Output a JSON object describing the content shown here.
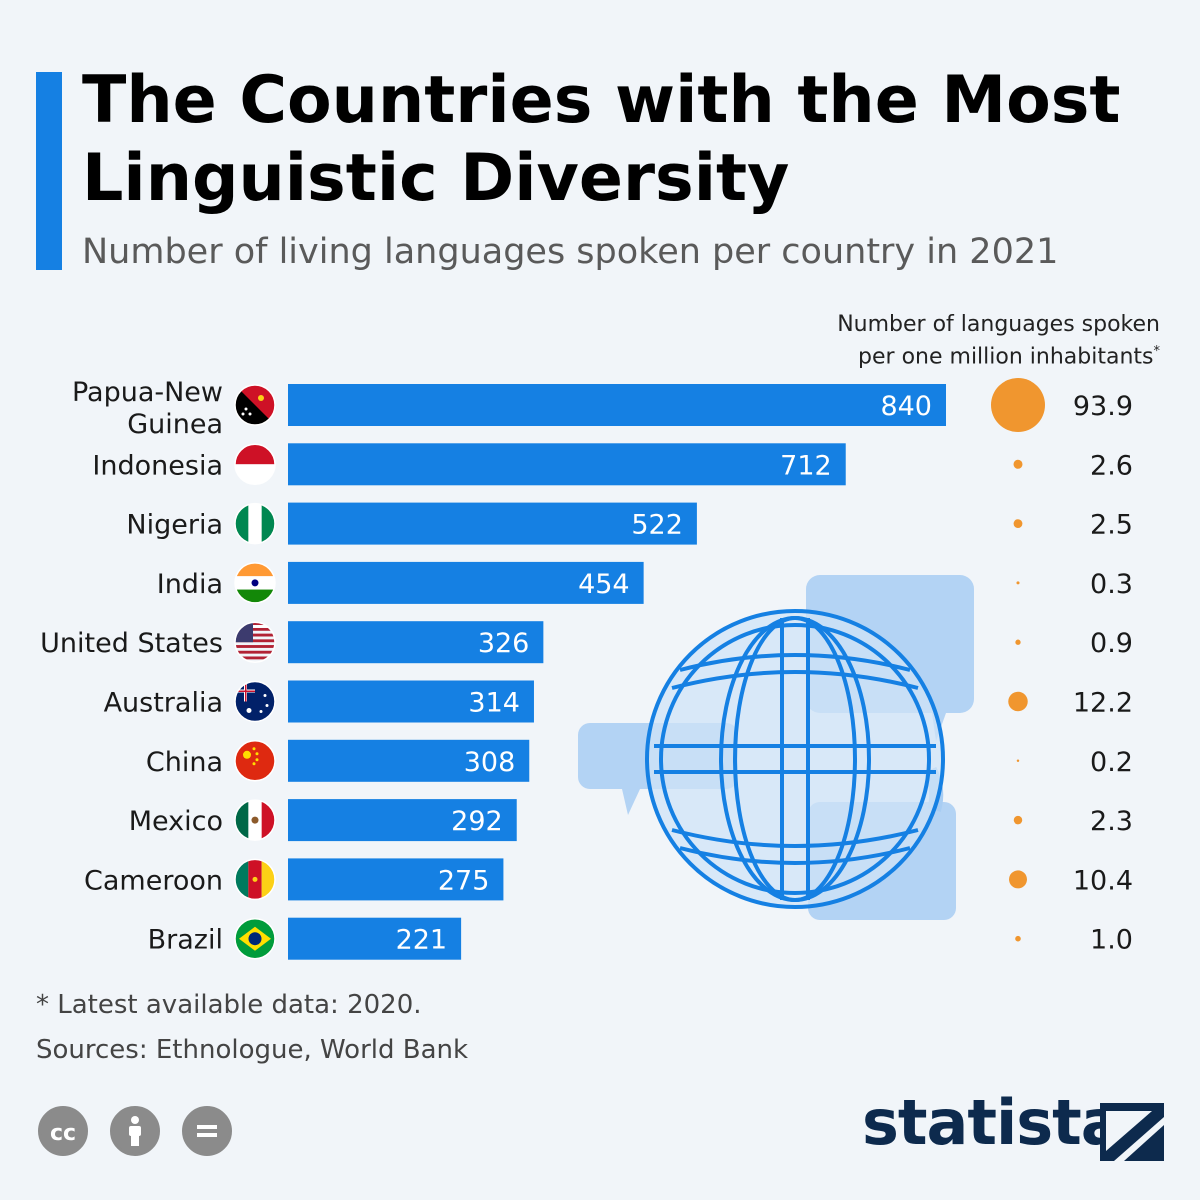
{
  "header": {
    "title": "The Countries with the Most Linguistic Diversity",
    "subtitle": "Number of living languages spoken per country in 2021"
  },
  "legend": {
    "line1": "Number of languages spoken",
    "line2": "per one million inhabitants",
    "marker": "*"
  },
  "chart_data": {
    "type": "bar",
    "title": "The Countries with the Most Linguistic Diversity",
    "subtitle": "Number of living languages spoken per country in 2021",
    "categories": [
      "Papua-New Guinea",
      "Indonesia",
      "Nigeria",
      "India",
      "United States",
      "Australia",
      "China",
      "Mexico",
      "Cameroon",
      "Brazil"
    ],
    "series": [
      {
        "values": [
          840,
          712,
          522,
          454,
          326,
          314,
          308,
          292,
          275,
          221
        ]
      },
      {
        "name": "Number of languages spoken per one million inhabitants*",
        "values": [
          93.9,
          2.6,
          2.5,
          0.3,
          0.9,
          12.2,
          0.2,
          2.3,
          10.4,
          1.0
        ]
      }
    ],
    "value_labels": [
      "840",
      "712",
      "522",
      "454",
      "326",
      "314",
      "308",
      "292",
      "275",
      "221"
    ],
    "dot_labels": [
      "93.9",
      "2.6",
      "2.5",
      "0.3",
      "0.9",
      "12.2",
      "0.2",
      "2.3",
      "10.4",
      "1.0"
    ],
    "orientation": "horizontal",
    "xlim": [
      0,
      840
    ],
    "colors": {
      "bar": "#1580e3",
      "dot": "#f0962f"
    }
  },
  "footer": {
    "footnote": "* Latest available data: 2020.",
    "sources": "Sources: Ethnologue, World Bank",
    "brand": "statista"
  },
  "icons": [
    "cc-icon",
    "by-icon",
    "nd-icon",
    "globe-icon",
    "speech-bubble-icon",
    "statista-logo-icon"
  ]
}
